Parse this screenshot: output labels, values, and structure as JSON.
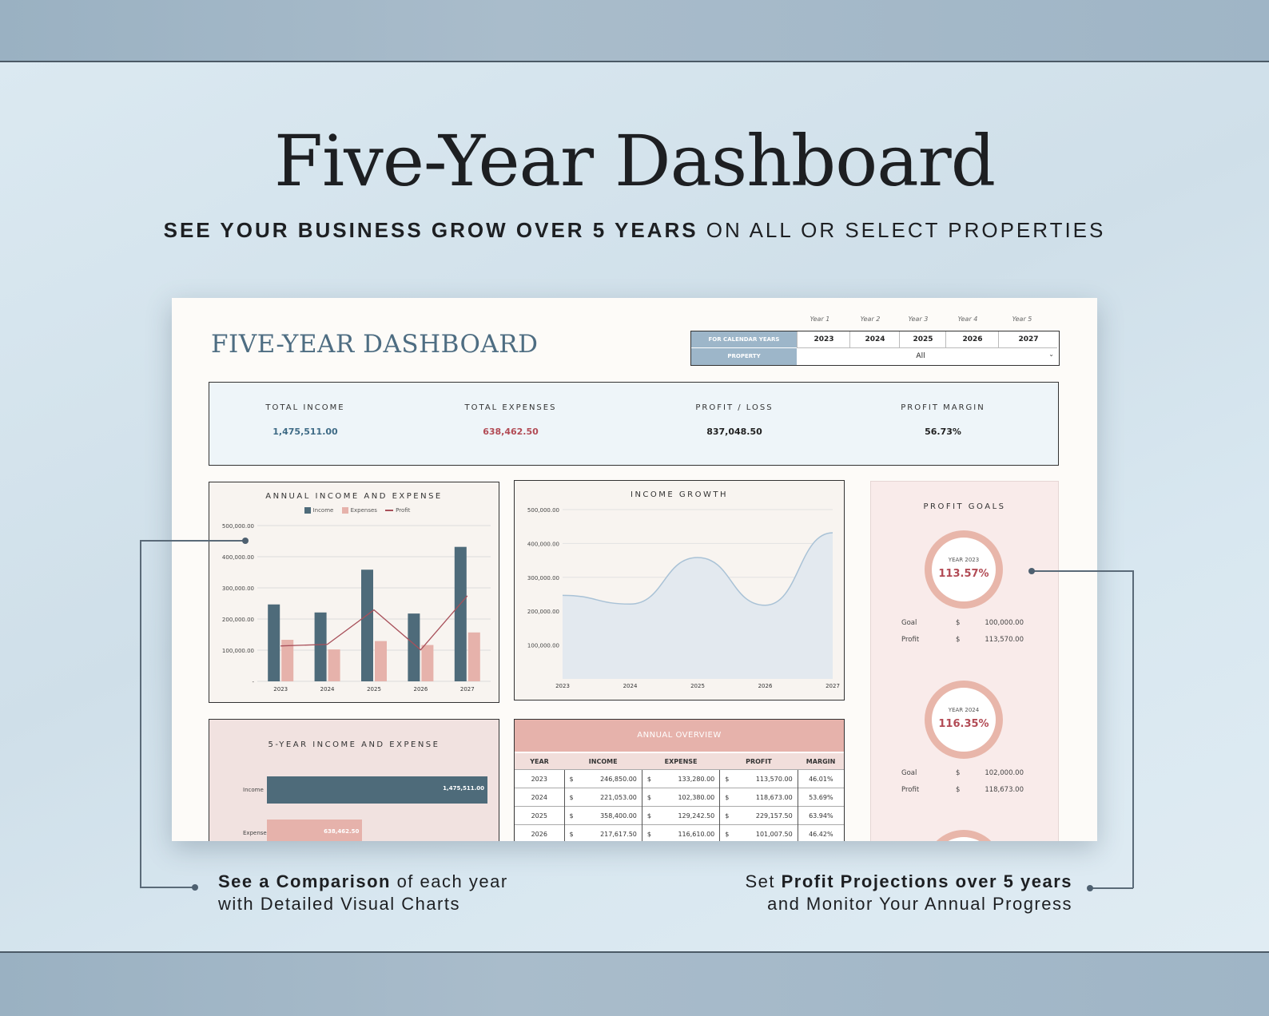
{
  "hero": {
    "title": "Five-Year Dashboard",
    "subtitle_bold": "SEE YOUR BUSINESS GROW OVER 5 YEARS",
    "subtitle_rest": " ON ALL OR SELECT PROPERTIES"
  },
  "sheet": {
    "title": "FIVE-YEAR DASHBOARD",
    "year_labels": [
      "Year 1",
      "Year 2",
      "Year 3",
      "Year 4",
      "Year 5"
    ],
    "calendar_label": "FOR CALENDAR YEARS",
    "years": [
      "2023",
      "2024",
      "2025",
      "2026",
      "2027"
    ],
    "property_label": "PROPERTY",
    "property_value": "All"
  },
  "kpis": [
    {
      "label": "TOTAL INCOME",
      "value": "1,475,511.00",
      "color": "#3f6b86"
    },
    {
      "label": "TOTAL EXPENSES",
      "value": "638,462.50",
      "color": "#b24b55"
    },
    {
      "label": "PROFIT / LOSS",
      "value": "837,048.50",
      "color": "#222222"
    },
    {
      "label": "PROFIT MARGIN",
      "value": "56.73%",
      "color": "#222222"
    }
  ],
  "annual_chart": {
    "title": "ANNUAL INCOME AND EXPENSE",
    "legend": [
      "Income",
      "Expenses",
      "Profit"
    ],
    "y_ticks": [
      "500,000.00",
      "400,000.00",
      "300,000.00",
      "200,000.00",
      "100,000.00",
      "-"
    ]
  },
  "growth_chart": {
    "title": "INCOME GROWTH",
    "y_ticks": [
      "500,000.00",
      "400,000.00",
      "300,000.00",
      "200,000.00",
      "100,000.00"
    ]
  },
  "chart_data": [
    {
      "type": "bar",
      "title": "ANNUAL INCOME AND EXPENSE",
      "categories": [
        "2023",
        "2024",
        "2025",
        "2026",
        "2027"
      ],
      "series": [
        {
          "name": "Income",
          "values": [
            246850,
            221053,
            358400,
            217617.5,
            431590.5
          ],
          "color": "#4e6b7a"
        },
        {
          "name": "Expenses",
          "values": [
            133280,
            102380,
            129242.5,
            116610,
            156950
          ],
          "color": "#e6b2ab"
        },
        {
          "name": "Profit",
          "values": [
            113570,
            118673,
            229157.5,
            101007.5,
            274640.5
          ],
          "color": "#a8505a"
        }
      ],
      "ylim": [
        0,
        500000
      ]
    },
    {
      "type": "area",
      "title": "INCOME GROWTH",
      "categories": [
        "2023",
        "2024",
        "2025",
        "2026",
        "2027"
      ],
      "values": [
        246850,
        221053,
        358400,
        217617.5,
        431590.5
      ],
      "ylim": [
        0,
        500000
      ]
    },
    {
      "type": "bar",
      "title": "5-YEAR INCOME AND EXPENSE",
      "categories": [
        "Income",
        "Expense"
      ],
      "values": [
        1475511,
        638462.5
      ],
      "labels": [
        "1,475,511.00",
        "638,462.50"
      ]
    }
  ],
  "profit_goals": {
    "title": "PROFIT GOALS",
    "items": [
      {
        "year": "YEAR 2023",
        "pct": "113.57%",
        "goal_label": "Goal",
        "goal": "100,000.00",
        "profit_label": "Profit",
        "profit": "113,570.00",
        "cur": "$"
      },
      {
        "year": "YEAR 2024",
        "pct": "116.35%",
        "goal_label": "Goal",
        "goal": "102,000.00",
        "profit_label": "Profit",
        "profit": "118,673.00",
        "cur": "$"
      }
    ]
  },
  "five_year": {
    "title": "5-YEAR INCOME AND EXPENSE",
    "income_label": "Income",
    "income_value": "1,475,511.00",
    "expense_label": "Expense",
    "expense_value": "638,462.50"
  },
  "overview": {
    "title": "ANNUAL OVERVIEW",
    "headers": [
      "YEAR",
      "INCOME",
      "EXPENSE",
      "PROFIT",
      "MARGIN"
    ],
    "rows": [
      [
        "2023",
        "$",
        "246,850.00",
        "$",
        "133,280.00",
        "$",
        "113,570.00",
        "46.01%"
      ],
      [
        "2024",
        "$",
        "221,053.00",
        "$",
        "102,380.00",
        "$",
        "118,673.00",
        "53.69%"
      ],
      [
        "2025",
        "$",
        "358,400.00",
        "$",
        "129,242.50",
        "$",
        "229,157.50",
        "63.94%"
      ],
      [
        "2026",
        "$",
        "217,617.50",
        "$",
        "116,610.00",
        "$",
        "101,007.50",
        "46.42%"
      ]
    ]
  },
  "callouts": {
    "left_bold": "See a Comparison",
    "left_rest": " of each year",
    "left_line2": "with Detailed Visual Charts",
    "right_pre": "Set ",
    "right_bold": "Profit Projections over 5 years",
    "right_line2": "and Monitor Your Annual Progress"
  }
}
